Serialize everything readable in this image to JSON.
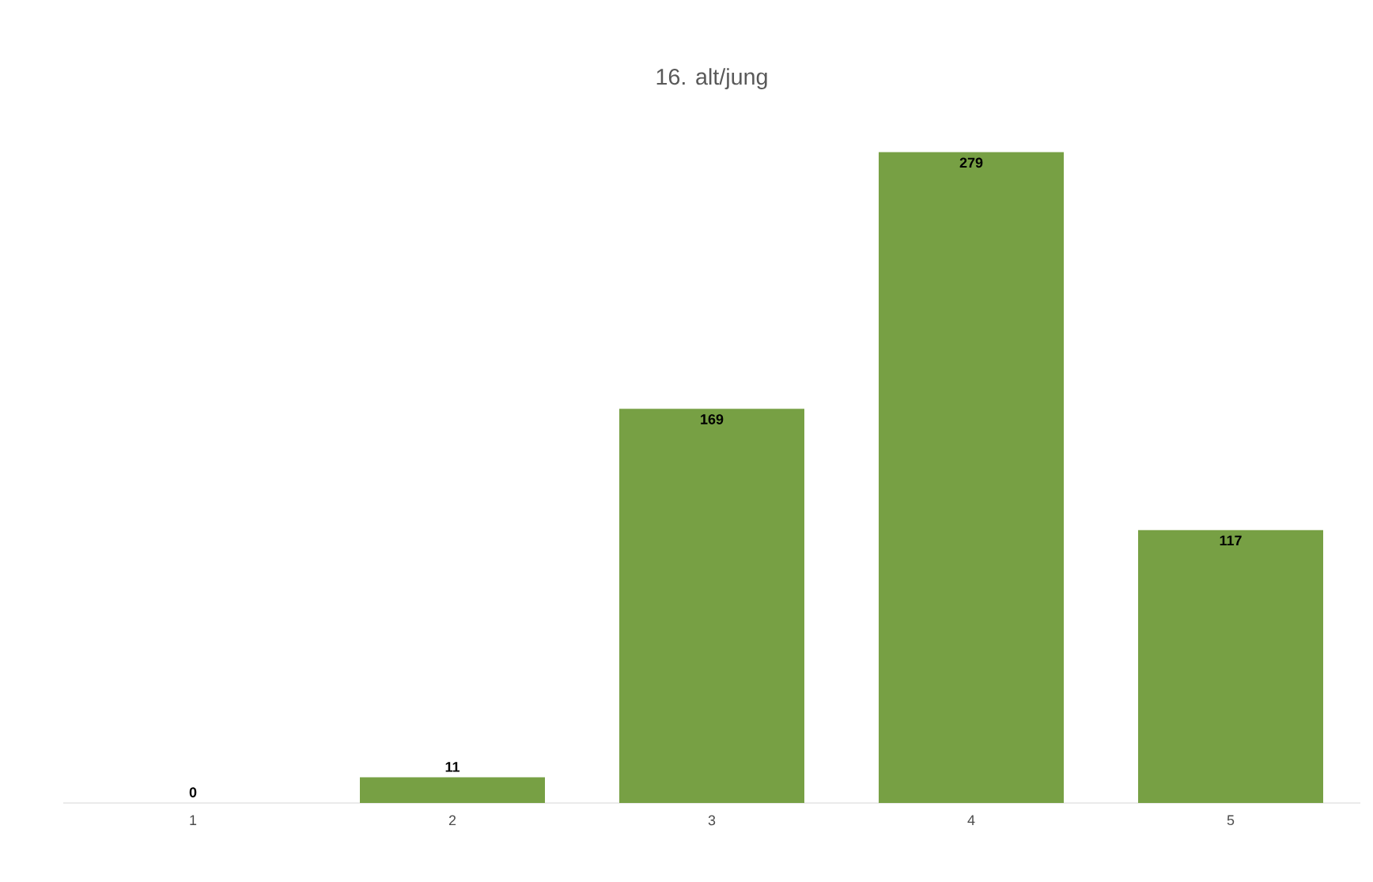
{
  "chart_data": {
    "type": "bar",
    "title": "16. alt/jung",
    "categories": [
      "1",
      "2",
      "3",
      "4",
      "5"
    ],
    "values": [
      0,
      11,
      169,
      279,
      117
    ],
    "color": "#77a044",
    "data_labels": true
  }
}
